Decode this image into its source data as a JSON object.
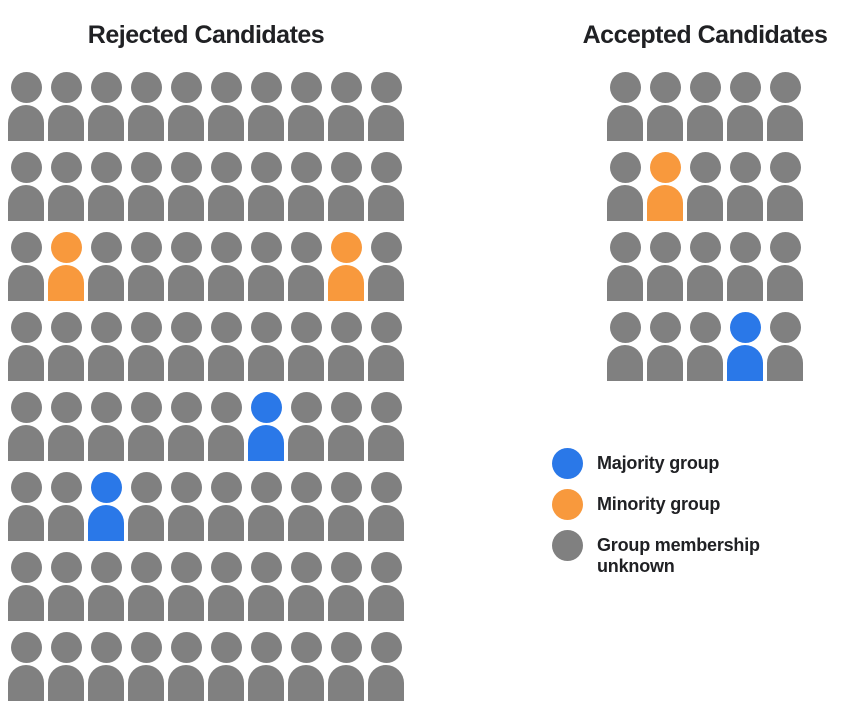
{
  "figure": {
    "rejected": {
      "title": "Rejected Candidates",
      "rows": 8,
      "columns": 10,
      "total_people": 80,
      "highlighted": [
        {
          "row": 3,
          "col": 2,
          "group": "minority"
        },
        {
          "row": 3,
          "col": 9,
          "group": "minority"
        },
        {
          "row": 5,
          "col": 7,
          "group": "majority"
        },
        {
          "row": 6,
          "col": 3,
          "group": "majority"
        }
      ]
    },
    "accepted": {
      "title": "Accepted Candidates",
      "rows": 4,
      "columns": 5,
      "total_people": 20,
      "highlighted": [
        {
          "row": 2,
          "col": 2,
          "group": "minority"
        },
        {
          "row": 4,
          "col": 4,
          "group": "majority"
        }
      ]
    }
  },
  "legend": {
    "items": [
      {
        "group": "majority",
        "label": "Majority group"
      },
      {
        "group": "minority",
        "label": "Minority group"
      },
      {
        "group": "unknown",
        "label": "Group membership unknown"
      }
    ]
  },
  "colors": {
    "majority": "#2A78E8",
    "minority": "#F8993D",
    "unknown": "#808080"
  },
  "chart_data": {
    "type": "pictogram",
    "categories": [
      "Rejected Candidates",
      "Accepted Candidates"
    ],
    "series": [
      {
        "name": "Majority group",
        "values": [
          2,
          1
        ],
        "color": "#2A78E8"
      },
      {
        "name": "Minority group",
        "values": [
          2,
          1
        ],
        "color": "#F8993D"
      },
      {
        "name": "Group membership unknown",
        "values": [
          76,
          18
        ],
        "color": "#808080"
      }
    ],
    "totals": [
      80,
      20
    ],
    "legend_position": "right"
  }
}
